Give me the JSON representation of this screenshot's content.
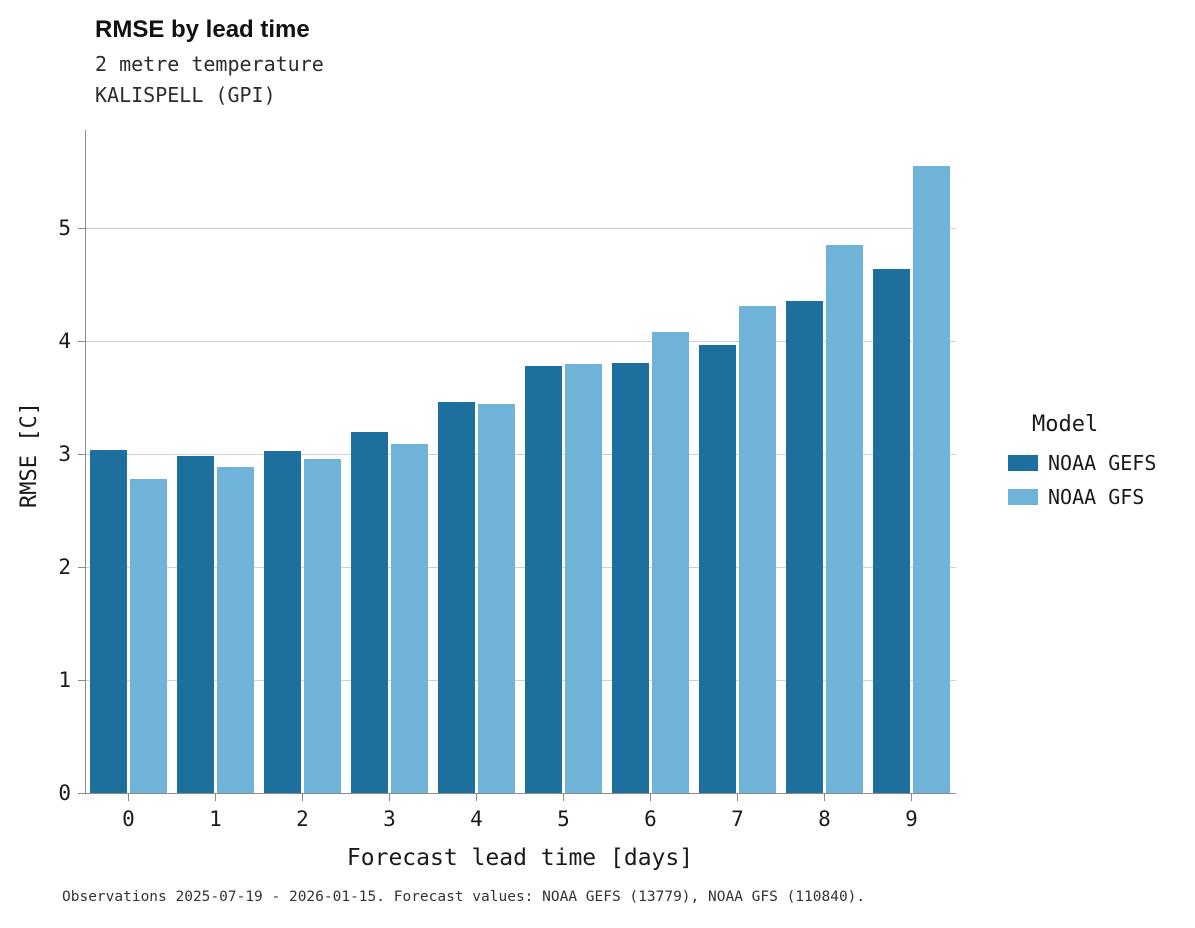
{
  "header": {
    "title": "RMSE by lead time",
    "subtitle1": "2 metre temperature",
    "subtitle2": "KALISPELL (GPI)"
  },
  "legend": {
    "title": "Model",
    "items": [
      {
        "label": "NOAA GEFS",
        "color": "#1d6f9d"
      },
      {
        "label": "NOAA GFS",
        "color": "#6fb3d9"
      }
    ]
  },
  "caption": "Observations 2025-07-19 - 2026-01-15. Forecast values: NOAA GEFS (13779), NOAA GFS (110840).",
  "chart_data": {
    "type": "bar",
    "title": "RMSE by lead time",
    "subtitle": "2 metre temperature — KALISPELL (GPI)",
    "xlabel": "Forecast lead time [days]",
    "ylabel": "RMSE [C]",
    "categories": [
      0,
      1,
      2,
      3,
      4,
      5,
      6,
      7,
      8,
      9
    ],
    "series": [
      {
        "name": "NOAA GEFS",
        "color": "#1d6f9d",
        "values": [
          3.04,
          2.98,
          3.03,
          3.2,
          3.46,
          3.78,
          3.81,
          3.97,
          4.36,
          4.64
        ]
      },
      {
        "name": "NOAA GFS",
        "color": "#6fb3d9",
        "values": [
          2.78,
          2.89,
          2.96,
          3.09,
          3.44,
          3.8,
          4.08,
          4.31,
          4.85,
          5.55
        ]
      }
    ],
    "ylim": [
      0,
      5.87
    ],
    "yticks": [
      0,
      1,
      2,
      3,
      4,
      5
    ],
    "grid": true,
    "legend_position": "right",
    "legend_title": "Model"
  }
}
